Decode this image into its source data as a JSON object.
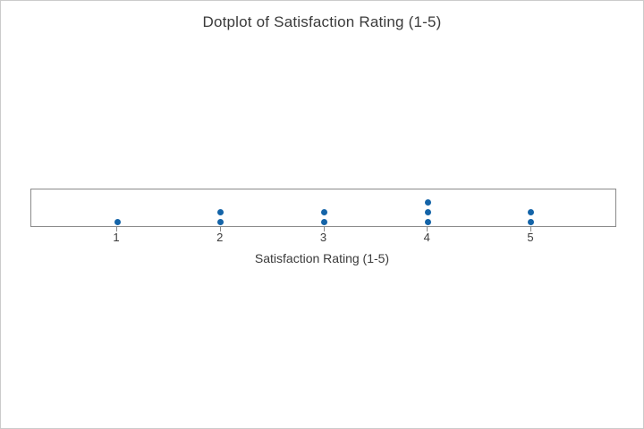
{
  "window": {
    "background": "#ffffff",
    "border_color": "#cbcbcb"
  },
  "chart_data": {
    "type": "dotplot",
    "title": "Dotplot of Satisfaction Rating (1-5)",
    "xlabel": "Satisfaction Rating (1-5)",
    "ylabel": "",
    "categories": [
      1,
      2,
      3,
      4,
      5
    ],
    "counts": [
      1,
      2,
      2,
      3,
      2
    ],
    "xlim": [
      0.17,
      5.83
    ],
    "grid": false,
    "legend": false,
    "dot_color": "#1464A8",
    "axis_color": "#8a8a8a",
    "text_color": "#3a3a3a"
  }
}
